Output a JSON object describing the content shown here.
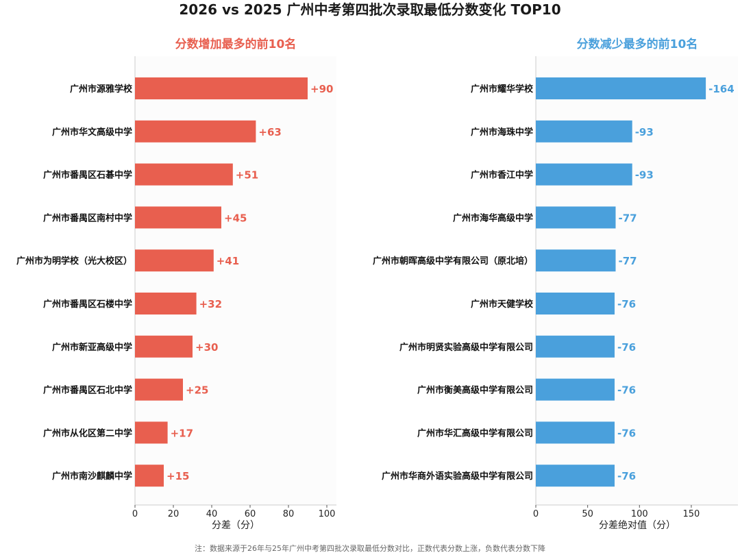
{
  "title": "2026 vs 2025 广州中考第四批次录取最低分数变化 TOP10",
  "note": "注：数据来源于26年与25年广州中考第四批次录取最低分数对比，正数代表分数上涨，负数代表分数下降",
  "colors": {
    "increase": "#e85f4f",
    "decrease": "#4aa0dc",
    "text": "#1a1a1a"
  },
  "chart_data": [
    {
      "type": "bar",
      "orientation": "horizontal",
      "title": "分数增加最多的前10名",
      "xlabel": "分差（分）",
      "xlim": [
        0,
        105
      ],
      "xticks": [
        0,
        20,
        40,
        60,
        80,
        100
      ],
      "grid": false,
      "categories": [
        "广州市源雅学校",
        "广州市华文高级中学",
        "广州市番禺区石碁中学",
        "广州市番禺区南村中学",
        "广州市为明学校（光大校区）",
        "广州市番禺区石楼中学",
        "广州市新亚高级中学",
        "广州市番禺区石北中学",
        "广州市从化区第二中学",
        "广州市南沙麒麟中学"
      ],
      "values": [
        90,
        63,
        51,
        45,
        41,
        32,
        30,
        25,
        17,
        15
      ],
      "labels": [
        "+90",
        "+63",
        "+51",
        "+45",
        "+41",
        "+32",
        "+30",
        "+25",
        "+17",
        "+15"
      ]
    },
    {
      "type": "bar",
      "orientation": "horizontal",
      "title": "分数减少最多的前10名",
      "xlabel": "分差绝对值（分）",
      "xlim": [
        0,
        195
      ],
      "xticks": [
        0,
        50,
        100,
        150
      ],
      "grid": false,
      "categories": [
        "广州市耀华学校",
        "广州市海珠中学",
        "广州市香江中学",
        "广州市海华高级中学",
        "广州市朝晖高级中学有限公司（原北培）",
        "广州市天健学校",
        "广州市明贤实验高级中学有限公司",
        "广州市衡美高级中学有限公司",
        "广州市华汇高级中学有限公司",
        "广州市华商外语实验高级中学有限公司"
      ],
      "values": [
        164,
        93,
        93,
        77,
        77,
        76,
        76,
        76,
        76,
        76
      ],
      "labels": [
        "-164",
        "-93",
        "-93",
        "-77",
        "-77",
        "-76",
        "-76",
        "-76",
        "-76",
        "-76"
      ]
    }
  ]
}
